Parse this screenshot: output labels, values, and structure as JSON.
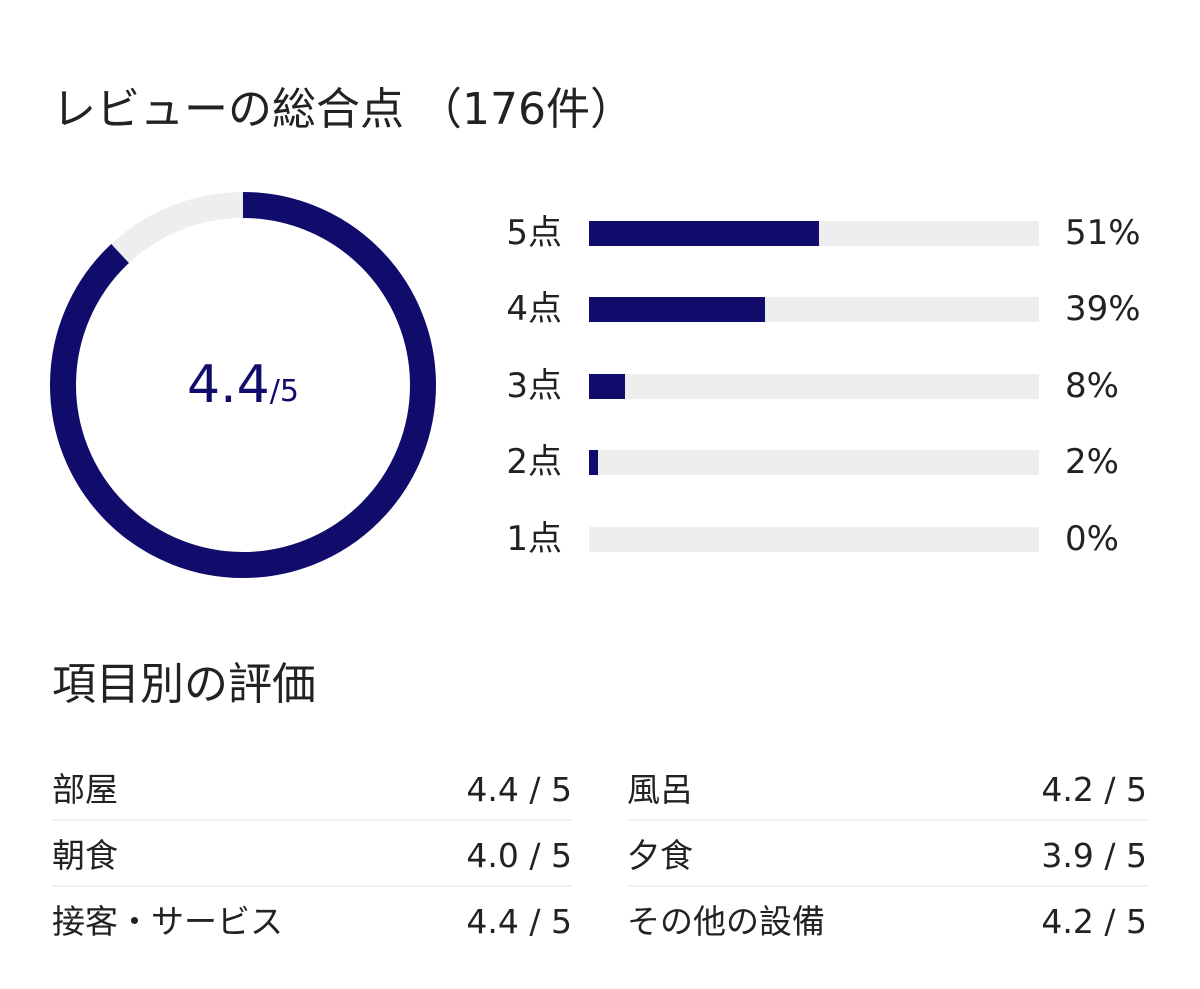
{
  "header": {
    "title": "レビューの総合点",
    "count": "（176件）"
  },
  "overall": {
    "score": "4.4",
    "max": "/5",
    "ring_fraction": 0.88,
    "ring_color": "#110c6b",
    "track_color": "#eeeeee"
  },
  "distribution": [
    {
      "label": "5点",
      "percent": "51%",
      "value": 51
    },
    {
      "label": "4点",
      "percent": "39%",
      "value": 39
    },
    {
      "label": "3点",
      "percent": "8%",
      "value": 8
    },
    {
      "label": "2点",
      "percent": "2%",
      "value": 2
    },
    {
      "label": "1点",
      "percent": "0%",
      "value": 0
    }
  ],
  "categories": {
    "title": "項目別の評価",
    "left": [
      {
        "name": "部屋",
        "score": "4.4 / 5"
      },
      {
        "name": "朝食",
        "score": "4.0 / 5"
      },
      {
        "name": "接客・サービス",
        "score": "4.4 / 5"
      }
    ],
    "right": [
      {
        "name": "風呂",
        "score": "4.2 / 5"
      },
      {
        "name": "夕食",
        "score": "3.9 / 5"
      },
      {
        "name": "その他の設備",
        "score": "4.2 / 5"
      }
    ]
  }
}
